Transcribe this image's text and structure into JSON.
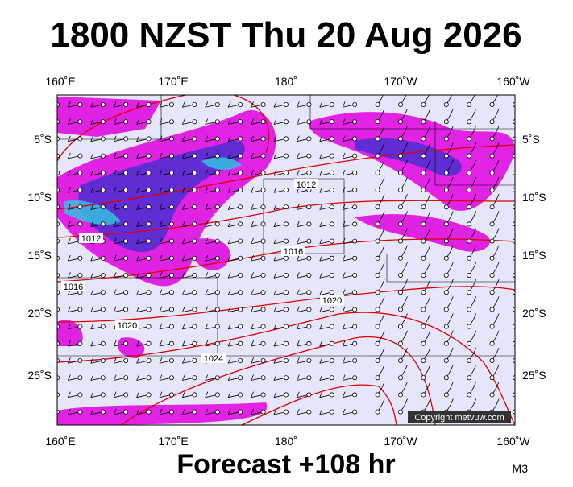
{
  "header": {
    "title": "1800 NZST Thu 20 Aug 2026"
  },
  "map": {
    "lon_labels": [
      "160˚E",
      "170˚E",
      "180˚",
      "170˚W",
      "160˚W"
    ],
    "lat_labels": [
      "5˚S",
      "10˚S",
      "15˚S",
      "20˚S",
      "25˚S"
    ],
    "isobar_labels": [
      "1012",
      "1012",
      "1016",
      "1016",
      "1020",
      "1020",
      "1024"
    ],
    "copyright": "Copyright metvuw.com"
  },
  "footer": {
    "forecast": "Forecast +108 hr",
    "code": "M3"
  }
}
